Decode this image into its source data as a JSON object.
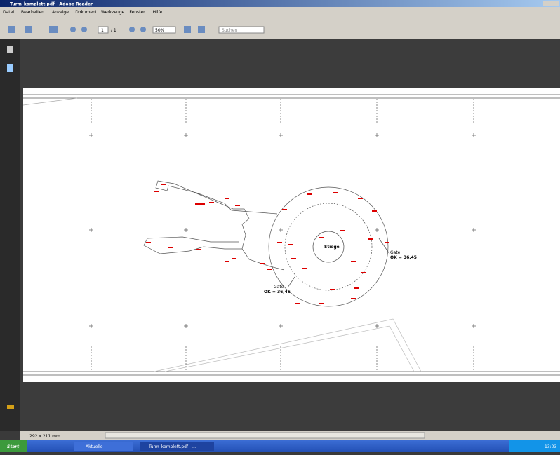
{
  "window": {
    "title": "Turm_komplett.pdf - Adobe Reader"
  },
  "menu": [
    "Datei",
    "Bearbeiten",
    "Anzeige",
    "Dokument",
    "Werkzeuge",
    "Fenster",
    "Hilfe"
  ],
  "toolbar": {
    "page": "1",
    "pages": "/ 1",
    "zoom": "50%",
    "search": "Suchen"
  },
  "drawing": {
    "center_label": "Stiege",
    "right_label": [
      "Gate",
      "OK = 36,45"
    ],
    "left_label": [
      "Gate",
      "OK = 36,45"
    ]
  },
  "status": {
    "size": "292 x 211 mm"
  },
  "taskbar": {
    "start": "Start",
    "items": [
      "Aktuelle",
      "Turm_komplett.pdf - ..."
    ],
    "clock": "13:03"
  }
}
